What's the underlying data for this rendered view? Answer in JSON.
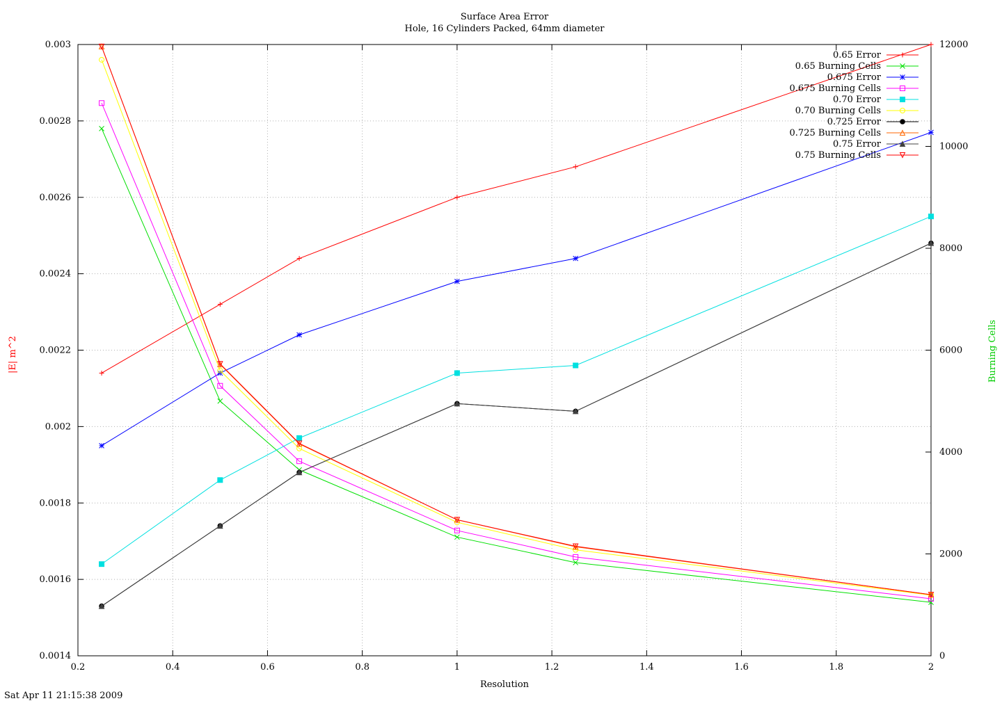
{
  "chart_data": {
    "type": "line",
    "title": "Surface Area Error",
    "subtitle": "Hole, 16 Cylinders Packed, 64mm diameter",
    "xlabel": "Resolution",
    "ylabel": "|E| m^2",
    "y2label": "Burning Cells",
    "ylabel_color": "#ff0000",
    "y2label_color": "#00cc00",
    "timestamp": "Sat Apr 11 21:15:38 2009",
    "xlim": [
      0.2,
      2
    ],
    "ylim": [
      0.0014,
      0.003
    ],
    "y2lim": [
      0,
      12000
    ],
    "grid": true,
    "legend_position": "top-right",
    "x_ticks": [
      "0.2",
      "0.4",
      "0.6",
      "0.8",
      "1",
      "1.2",
      "1.4",
      "1.6",
      "1.8",
      "2"
    ],
    "y_ticks": [
      "0.0014",
      "0.0016",
      "0.0018",
      "0.002",
      "0.0022",
      "0.0024",
      "0.0026",
      "0.0028",
      "0.003"
    ],
    "y2_ticks": [
      "0",
      "2000",
      "4000",
      "6000",
      "8000",
      "10000",
      "12000"
    ],
    "x": [
      0.25,
      0.5,
      0.667,
      1,
      1.25,
      2
    ],
    "series": [
      {
        "name": "0.65 Error",
        "axis": "y",
        "color": "#ff0000",
        "marker": "plus",
        "values": [
          0.00214,
          0.00232,
          0.00244,
          0.0026,
          0.00268,
          0.003
        ]
      },
      {
        "name": "0.65 Burning Cells",
        "axis": "y2",
        "color": "#00e000",
        "marker": "cross",
        "values": [
          10350,
          5000,
          3650,
          2330,
          1830,
          1050
        ]
      },
      {
        "name": "0.675 Error",
        "axis": "y",
        "color": "#0000ff",
        "marker": "star",
        "values": [
          0.00195,
          0.00214,
          0.00224,
          0.00238,
          0.00244,
          0.00277
        ]
      },
      {
        "name": "0.675 Burning Cells",
        "axis": "y2",
        "color": "#ff00ff",
        "marker": "square-open",
        "values": [
          10850,
          5300,
          3820,
          2460,
          1940,
          1120
        ]
      },
      {
        "name": "0.70 Error",
        "axis": "y",
        "color": "#00e0e0",
        "marker": "square-filled",
        "values": [
          0.00164,
          0.00186,
          0.00197,
          0.00214,
          0.00216,
          0.00255
        ]
      },
      {
        "name": "0.70 Burning Cells",
        "axis": "y2",
        "color": "#ffff00",
        "marker": "circle-open",
        "values": [
          11700,
          5600,
          4070,
          2620,
          2080,
          1190
        ]
      },
      {
        "name": "0.725 Error",
        "axis": "y",
        "color": "#000000",
        "marker": "circle-filled",
        "values": [
          0.00153,
          0.00174,
          0.00188,
          0.00206,
          0.00204,
          0.00248
        ]
      },
      {
        "name": "0.725 Burning Cells",
        "axis": "y2",
        "color": "#ff6600",
        "marker": "triangle-open",
        "values": [
          11960,
          5720,
          4160,
          2670,
          2140,
          1200
        ]
      },
      {
        "name": "0.75 Error",
        "axis": "y",
        "color": "#404040",
        "marker": "triangle-filled",
        "values": [
          0.00153,
          0.00174,
          0.00188,
          0.00206,
          0.00204,
          0.00248
        ]
      },
      {
        "name": "0.75 Burning Cells",
        "axis": "y2",
        "color": "#ff0000",
        "marker": "triangle-down-open",
        "values": [
          11960,
          5730,
          4170,
          2670,
          2150,
          1200
        ]
      }
    ]
  }
}
